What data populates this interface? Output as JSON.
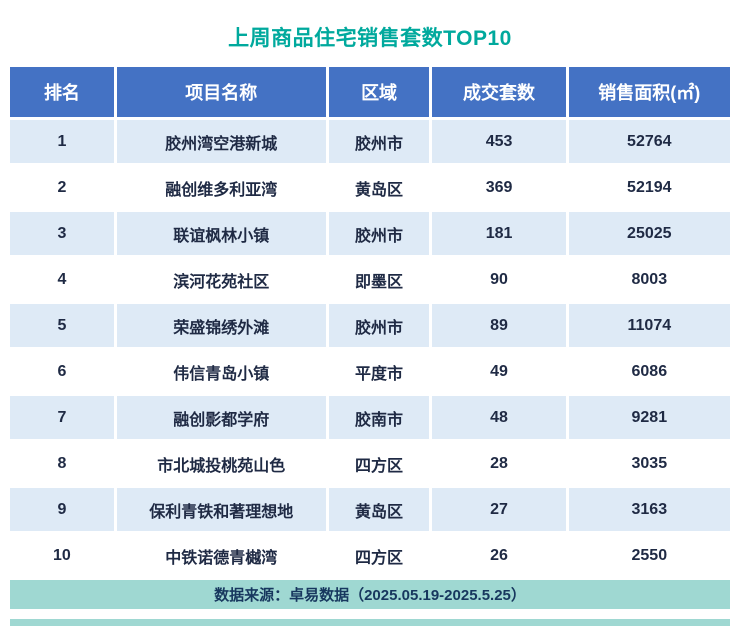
{
  "title": "上周商品住宅销售套数TOP10",
  "footer": {
    "text": "数据来源：卓易数据（2025.05.19-2025.5.25）"
  },
  "colors": {
    "title_teal": "#00A99D",
    "header_blue": "#4472C4",
    "row_alt_blue": "#DEEAF6",
    "footer_teal": "#9FD8D2"
  },
  "chart_data": {
    "type": "table",
    "title": "上周商品住宅销售套数TOP10",
    "columns": [
      "排名",
      "项目名称",
      "区域",
      "成交套数",
      "销售面积(㎡)"
    ],
    "source_note": "数据来源：卓易数据（2025.05.19-2025.5.25）",
    "rows": [
      {
        "rank": "1",
        "name": "胶州湾空港新城",
        "region": "胶州市",
        "units": "453",
        "area": "52764"
      },
      {
        "rank": "2",
        "name": "融创维多利亚湾",
        "region": "黄岛区",
        "units": "369",
        "area": "52194"
      },
      {
        "rank": "3",
        "name": "联谊枫林小镇",
        "region": "胶州市",
        "units": "181",
        "area": "25025"
      },
      {
        "rank": "4",
        "name": "滨河花苑社区",
        "region": "即墨区",
        "units": "90",
        "area": "8003"
      },
      {
        "rank": "5",
        "name": "荣盛锦绣外滩",
        "region": "胶州市",
        "units": "89",
        "area": "11074"
      },
      {
        "rank": "6",
        "name": "伟信青岛小镇",
        "region": "平度市",
        "units": "49",
        "area": "6086"
      },
      {
        "rank": "7",
        "name": "融创影都学府",
        "region": "胶南市",
        "units": "48",
        "area": "9281"
      },
      {
        "rank": "8",
        "name": "市北城投桃苑山色",
        "region": "四方区",
        "units": "28",
        "area": "3035"
      },
      {
        "rank": "9",
        "name": "保利青铁和著理想地",
        "region": "黄岛区",
        "units": "27",
        "area": "3163"
      },
      {
        "rank": "10",
        "name": "中铁诺德青樾湾",
        "region": "四方区",
        "units": "26",
        "area": "2550"
      }
    ]
  }
}
